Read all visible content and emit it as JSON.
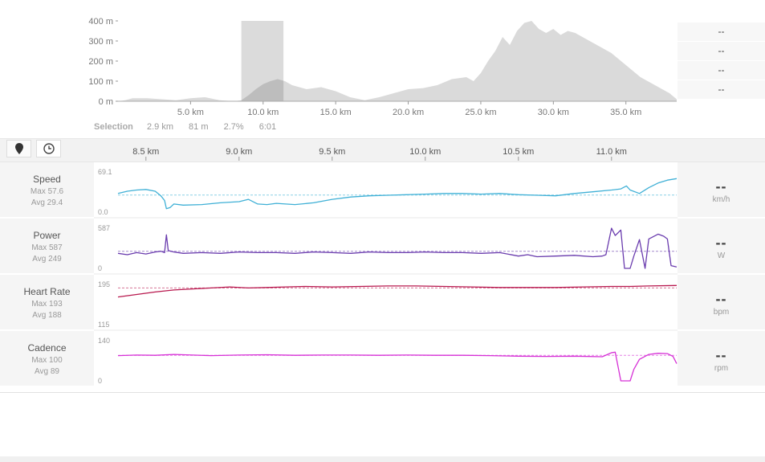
{
  "elevation_side_values": [
    "--",
    "--",
    "--",
    "--"
  ],
  "selection": {
    "label": "Selection",
    "distance": "2.9 km",
    "elevation_gain": "81 m",
    "grade": "2.7%",
    "time": "6:01"
  },
  "tracks": [
    {
      "name": "Speed",
      "max": "Max 57.6",
      "avg": "Avg 29.4",
      "value": "--",
      "unit": "km/h",
      "ymax_label": "69.1",
      "ymin_label": "0.0",
      "color": "#3fb0d6"
    },
    {
      "name": "Power",
      "max": "Max 587",
      "avg": "Avg 249",
      "value": "--",
      "unit": "W",
      "ymax_label": "587",
      "ymin_label": "0",
      "color": "#6a3cae"
    },
    {
      "name": "Heart Rate",
      "max": "Max 193",
      "avg": "Avg 188",
      "value": "--",
      "unit": "bpm",
      "ymax_label": "195",
      "ymin_label": "115",
      "color": "#b8184e"
    },
    {
      "name": "Cadence",
      "max": "Max 100",
      "avg": "Avg 89",
      "value": "--",
      "unit": "rpm",
      "ymax_label": "140",
      "ymin_label": "0",
      "color": "#d631d6"
    }
  ],
  "chart_data": [
    {
      "type": "area",
      "yticks": [
        "400 m",
        "300 m",
        "200 m",
        "100 m",
        "0 m"
      ],
      "ytick_values": [
        400,
        300,
        200,
        100,
        0
      ],
      "xticks": [
        "5.0 km",
        "10.0 km",
        "15.0 km",
        "20.0 km",
        "25.0 km",
        "30.0 km",
        "35.0 km"
      ],
      "xtick_values": [
        5,
        10,
        15,
        20,
        25,
        30,
        35
      ],
      "xlim": [
        0,
        38.5
      ],
      "ylim": [
        0,
        400
      ],
      "x": [
        0,
        0.5,
        1,
        2,
        3,
        4,
        5,
        6,
        7,
        8,
        8.5,
        9,
        9.5,
        10,
        10.5,
        11,
        11.5,
        12,
        13,
        14,
        15,
        16,
        17,
        18,
        19,
        20,
        21,
        22,
        23,
        24,
        24.5,
        25,
        25.5,
        26,
        26.5,
        27,
        27.5,
        28,
        28.5,
        29,
        29.5,
        30,
        30.5,
        31,
        31.5,
        32,
        33,
        34,
        35,
        36,
        37,
        38,
        38.5
      ],
      "y": [
        0,
        5,
        15,
        15,
        10,
        5,
        15,
        20,
        5,
        0,
        5,
        30,
        60,
        85,
        100,
        110,
        100,
        80,
        60,
        70,
        50,
        20,
        5,
        20,
        40,
        60,
        65,
        80,
        110,
        120,
        100,
        140,
        200,
        250,
        320,
        280,
        350,
        390,
        400,
        360,
        340,
        360,
        330,
        350,
        340,
        320,
        280,
        240,
        180,
        120,
        80,
        40,
        10
      ],
      "selection_range": [
        8.5,
        11.4
      ]
    },
    {
      "type": "line",
      "series": "Speed",
      "xticks": [
        "8.5 km",
        "9.0 km",
        "9.5 km",
        "10.0 km",
        "10.5 km",
        "11.0 km"
      ],
      "xtick_values": [
        8.5,
        9.0,
        9.5,
        10.0,
        10.5,
        11.0
      ],
      "xlim": [
        8.35,
        11.35
      ],
      "ylim": [
        0,
        69.1
      ],
      "avg": 29.4,
      "x": [
        8.35,
        8.4,
        8.45,
        8.5,
        8.55,
        8.58,
        8.6,
        8.61,
        8.63,
        8.65,
        8.7,
        8.8,
        8.9,
        9.0,
        9.05,
        9.1,
        9.15,
        9.2,
        9.25,
        9.3,
        9.4,
        9.5,
        9.6,
        9.7,
        9.8,
        9.9,
        10.0,
        10.1,
        10.2,
        10.3,
        10.4,
        10.5,
        10.6,
        10.7,
        10.8,
        10.9,
        11.0,
        11.05,
        11.08,
        11.1,
        11.15,
        11.2,
        11.25,
        11.3,
        11.35
      ],
      "y": [
        32,
        36,
        38,
        39,
        36,
        28,
        20,
        6,
        8,
        14,
        12,
        13,
        16,
        18,
        22,
        14,
        13,
        15,
        14,
        13,
        16,
        22,
        26,
        28,
        29,
        30,
        31,
        32,
        32,
        31,
        32,
        30,
        29,
        28,
        32,
        35,
        38,
        40,
        45,
        38,
        32,
        42,
        50,
        55,
        57.6
      ]
    },
    {
      "type": "line",
      "series": "Power",
      "xlim": [
        8.35,
        11.35
      ],
      "ylim": [
        0,
        587
      ],
      "avg": 249,
      "x": [
        8.35,
        8.4,
        8.45,
        8.5,
        8.55,
        8.58,
        8.6,
        8.61,
        8.62,
        8.65,
        8.7,
        8.8,
        8.9,
        9.0,
        9.1,
        9.2,
        9.3,
        9.4,
        9.5,
        9.6,
        9.7,
        9.8,
        9.9,
        10.0,
        10.1,
        10.2,
        10.3,
        10.4,
        10.5,
        10.55,
        10.6,
        10.7,
        10.8,
        10.9,
        10.95,
        10.97,
        11.0,
        11.02,
        11.05,
        11.07,
        11.1,
        11.12,
        11.15,
        11.18,
        11.2,
        11.25,
        11.28,
        11.3,
        11.32,
        11.35
      ],
      "y": [
        220,
        200,
        230,
        210,
        240,
        250,
        230,
        490,
        260,
        240,
        220,
        230,
        220,
        240,
        230,
        230,
        220,
        240,
        230,
        220,
        240,
        230,
        230,
        240,
        230,
        230,
        220,
        230,
        180,
        200,
        170,
        180,
        190,
        170,
        180,
        200,
        587,
        480,
        560,
        0,
        0,
        180,
        420,
        0,
        430,
        500,
        470,
        430,
        40,
        20
      ]
    },
    {
      "type": "line",
      "series": "Heart Rate",
      "xlim": [
        8.35,
        11.35
      ],
      "ylim": [
        115,
        195
      ],
      "avg": 188,
      "x": [
        8.35,
        8.45,
        8.55,
        8.65,
        8.75,
        8.85,
        8.95,
        9.05,
        9.15,
        9.25,
        9.35,
        9.5,
        9.65,
        9.8,
        9.95,
        10.1,
        10.25,
        10.4,
        10.55,
        10.7,
        10.85,
        11.0,
        11.1,
        11.2,
        11.35
      ],
      "y": [
        170,
        175,
        180,
        184,
        186,
        188,
        190,
        188,
        189,
        190,
        191,
        190,
        191,
        192,
        192,
        191,
        190,
        189,
        189,
        189,
        190,
        191,
        191,
        192,
        193
      ]
    },
    {
      "type": "line",
      "series": "Cadence",
      "xlim": [
        8.35,
        11.35
      ],
      "ylim": [
        0,
        140
      ],
      "avg": 89,
      "x": [
        8.35,
        8.45,
        8.55,
        8.65,
        8.75,
        8.85,
        9.0,
        9.15,
        9.3,
        9.45,
        9.6,
        9.75,
        9.9,
        10.05,
        10.2,
        10.35,
        10.5,
        10.65,
        10.8,
        10.95,
        11.0,
        11.02,
        11.05,
        11.07,
        11.1,
        11.12,
        11.15,
        11.2,
        11.25,
        11.3,
        11.33,
        11.35
      ],
      "y": [
        88,
        90,
        89,
        92,
        90,
        88,
        90,
        91,
        89,
        90,
        90,
        89,
        90,
        89,
        89,
        88,
        86,
        85,
        86,
        84,
        98,
        100,
        0,
        0,
        0,
        40,
        75,
        92,
        96,
        95,
        85,
        60
      ]
    }
  ]
}
